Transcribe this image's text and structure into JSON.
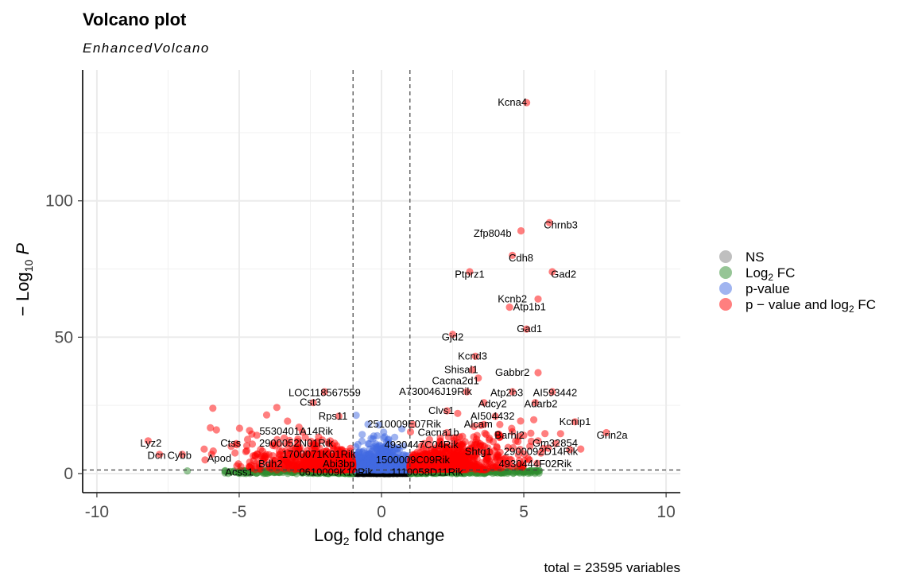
{
  "chart_data": {
    "type": "scatter",
    "title": "Volcano plot",
    "subtitle": "EnhancedVolcano",
    "xlabel": "Log2 fold change",
    "ylabel": "-Log10 P",
    "caption": "total = 23595 variables",
    "xlim": [
      -10.5,
      10.5
    ],
    "ylim": [
      -7,
      148
    ],
    "xticks": [
      -10,
      -5,
      0,
      5,
      10
    ],
    "xtick_labels": [
      "-10",
      "-5",
      "0",
      "5",
      "10"
    ],
    "yticks": [
      0,
      50,
      100
    ],
    "ytick_labels": [
      "0",
      "50",
      "100"
    ],
    "fc_cutoff": [
      -1,
      1
    ],
    "p_cutoff_log10": 1.3,
    "legend": [
      {
        "key": "NS",
        "label": "NS",
        "color": "#808080"
      },
      {
        "key": "log2fc",
        "label": "Log2 FC",
        "color": "#2e8b2e"
      },
      {
        "key": "pvalue",
        "label": "p-value",
        "color": "#4169e1"
      },
      {
        "key": "both",
        "label": "p − value and log2 FC",
        "color": "#ff0000"
      }
    ],
    "genes": [
      {
        "name": "Kcna4",
        "x": 5.1,
        "y": 136
      },
      {
        "name": "Chrnb3",
        "x": 5.9,
        "y": 92
      },
      {
        "name": "Zfp804b",
        "x": 4.9,
        "y": 89
      },
      {
        "name": "Cdh8",
        "x": 4.6,
        "y": 80
      },
      {
        "name": "Gad2",
        "x": 6.0,
        "y": 74
      },
      {
        "name": "Ptprz1",
        "x": 3.1,
        "y": 74
      },
      {
        "name": "Kcnb2",
        "x": 5.5,
        "y": 64
      },
      {
        "name": "Atp1b1",
        "x": 4.5,
        "y": 61
      },
      {
        "name": "Gad1",
        "x": 5.1,
        "y": 53
      },
      {
        "name": "Gjd2",
        "x": 2.5,
        "y": 51
      },
      {
        "name": "Kcnd3",
        "x": 3.3,
        "y": 43
      },
      {
        "name": "Shisal1",
        "x": 3.2,
        "y": 38
      },
      {
        "name": "Gabbr2",
        "x": 5.5,
        "y": 37
      },
      {
        "name": "Cacna2d1",
        "x": 3.4,
        "y": 35
      },
      {
        "name": "LOC118567559",
        "x": -2.0,
        "y": 30
      },
      {
        "name": "A730046J19Rik",
        "x": 3.0,
        "y": 30
      },
      {
        "name": "Atp2b3",
        "x": 4.6,
        "y": 30
      },
      {
        "name": "AI593442",
        "x": 6.0,
        "y": 30
      },
      {
        "name": "Cst3",
        "x": -2.4,
        "y": 26
      },
      {
        "name": "Adcy2",
        "x": 3.6,
        "y": 26
      },
      {
        "name": "Adarb2",
        "x": 5.4,
        "y": 26
      },
      {
        "name": "Clvs1",
        "x": 2.3,
        "y": 23
      },
      {
        "name": "Rps11",
        "x": -1.5,
        "y": 21
      },
      {
        "name": "AI504432",
        "x": 4.0,
        "y": 21
      },
      {
        "name": "Kcnip1",
        "x": 6.8,
        "y": 19
      },
      {
        "name": "2510009E07Rik",
        "x": 1.1,
        "y": 18
      },
      {
        "name": "Alcam",
        "x": 3.6,
        "y": 18
      },
      {
        "name": "5530401A14Rik",
        "x": -2.9,
        "y": 17
      },
      {
        "name": "Cacna1b",
        "x": 2.3,
        "y": 15
      },
      {
        "name": "Barhl2",
        "x": 5.0,
        "y": 14
      },
      {
        "name": "Grin2a",
        "x": 7.9,
        "y": 15
      },
      {
        "name": "Lyz2",
        "x": -8.2,
        "y": 12
      },
      {
        "name": "Ctss",
        "x": -5.1,
        "y": 11
      },
      {
        "name": "2900052N01Rik",
        "x": -1.8,
        "y": 12
      },
      {
        "name": "Gm32854",
        "x": 5.5,
        "y": 12
      },
      {
        "name": "4930447C04Rik",
        "x": 1.5,
        "y": 11
      },
      {
        "name": "Shtg1",
        "x": 3.3,
        "y": 9
      },
      {
        "name": "2900092D14Rik",
        "x": 7.0,
        "y": 9
      },
      {
        "name": "Dcn",
        "x": -7.8,
        "y": 7
      },
      {
        "name": "Cybb",
        "x": -7.0,
        "y": 7
      },
      {
        "name": "1700071K01Rik",
        "x": -1.4,
        "y": 7
      },
      {
        "name": "Apod",
        "x": -6.2,
        "y": 5
      },
      {
        "name": "1500009C09Rik",
        "x": 1.2,
        "y": 6
      },
      {
        "name": "Bdh2",
        "x": -4.0,
        "y": 4
      },
      {
        "name": "Abi3bp",
        "x": -1.5,
        "y": 4
      },
      {
        "name": "4930444F02Rik",
        "x": 5.2,
        "y": 5
      },
      {
        "name": "Acss1",
        "x": -4.8,
        "y": 1
      },
      {
        "name": "0610009K10Rik",
        "x": -1.3,
        "y": 1
      },
      {
        "name": "1110058D11Rik",
        "x": 0.9,
        "y": 1
      }
    ],
    "label_positions": [
      {
        "name": "Kcna4",
        "x": 4.6,
        "y": 136
      },
      {
        "name": "Chrnb3",
        "x": 6.3,
        "y": 91
      },
      {
        "name": "Zfp804b",
        "x": 3.9,
        "y": 88
      },
      {
        "name": "Cdh8",
        "x": 4.9,
        "y": 79
      },
      {
        "name": "Gad2",
        "x": 6.4,
        "y": 73
      },
      {
        "name": "Ptprz1",
        "x": 3.1,
        "y": 73
      },
      {
        "name": "Kcnb2",
        "x": 4.6,
        "y": 64
      },
      {
        "name": "Atp1b1",
        "x": 5.2,
        "y": 61
      },
      {
        "name": "Gad1",
        "x": 5.2,
        "y": 53
      },
      {
        "name": "Gjd2",
        "x": 2.5,
        "y": 50
      },
      {
        "name": "Kcnd3",
        "x": 3.2,
        "y": 43
      },
      {
        "name": "Shisal1",
        "x": 2.8,
        "y": 38
      },
      {
        "name": "Gabbr2",
        "x": 4.6,
        "y": 37
      },
      {
        "name": "Cacna2d1",
        "x": 2.6,
        "y": 34
      },
      {
        "name": "LOC118567559",
        "x": -2.0,
        "y": 29.5
      },
      {
        "name": "A730046J19Rik",
        "x": 1.9,
        "y": 30
      },
      {
        "name": "Atp2b3",
        "x": 4.4,
        "y": 29.5
      },
      {
        "name": "AI593442",
        "x": 6.1,
        "y": 29.5
      },
      {
        "name": "Cst3",
        "x": -2.5,
        "y": 26
      },
      {
        "name": "Adcy2",
        "x": 3.9,
        "y": 25.5
      },
      {
        "name": "Adarb2",
        "x": 5.6,
        "y": 25.5
      },
      {
        "name": "Clvs1",
        "x": 2.1,
        "y": 23
      },
      {
        "name": "Rps11",
        "x": -1.7,
        "y": 21
      },
      {
        "name": "AI504432",
        "x": 3.9,
        "y": 21
      },
      {
        "name": "Kcnip1",
        "x": 6.8,
        "y": 19
      },
      {
        "name": "2510009E07Rik",
        "x": 0.8,
        "y": 18
      },
      {
        "name": "Alcam",
        "x": 3.4,
        "y": 18
      },
      {
        "name": "5530401A14Rik",
        "x": -3.0,
        "y": 15.5
      },
      {
        "name": "Cacna1b",
        "x": 2.0,
        "y": 15
      },
      {
        "name": "Barhl2",
        "x": 4.5,
        "y": 14
      },
      {
        "name": "Grin2a",
        "x": 8.1,
        "y": 14
      },
      {
        "name": "Lyz2",
        "x": -8.1,
        "y": 11
      },
      {
        "name": "Ctss",
        "x": -5.3,
        "y": 11
      },
      {
        "name": "2900052N01Rik",
        "x": -3.0,
        "y": 11
      },
      {
        "name": "Gm32854",
        "x": 6.1,
        "y": 11
      },
      {
        "name": "4930447C04Rik",
        "x": 1.4,
        "y": 10.5
      },
      {
        "name": "Shtg1",
        "x": 3.4,
        "y": 8
      },
      {
        "name": "2900092D14Rik",
        "x": 5.6,
        "y": 8
      },
      {
        "name": "Dcn",
        "x": -7.9,
        "y": 6.5
      },
      {
        "name": "Cybb",
        "x": -7.1,
        "y": 6.5
      },
      {
        "name": "1700071K01Rik",
        "x": -2.2,
        "y": 7
      },
      {
        "name": "Apod",
        "x": -5.7,
        "y": 5.5
      },
      {
        "name": "1500009C09Rik",
        "x": 1.1,
        "y": 5
      },
      {
        "name": "Bdh2",
        "x": -3.9,
        "y": 3.5
      },
      {
        "name": "Abi3bp",
        "x": -1.5,
        "y": 3.5
      },
      {
        "name": "4930444F02Rik",
        "x": 5.4,
        "y": 3.5
      },
      {
        "name": "Acss1",
        "x": -5.0,
        "y": 0.5
      },
      {
        "name": "0610009K10Rik",
        "x": -1.6,
        "y": 0.5
      },
      {
        "name": "1110058D11Rik",
        "x": 1.6,
        "y": 0.5
      }
    ]
  }
}
